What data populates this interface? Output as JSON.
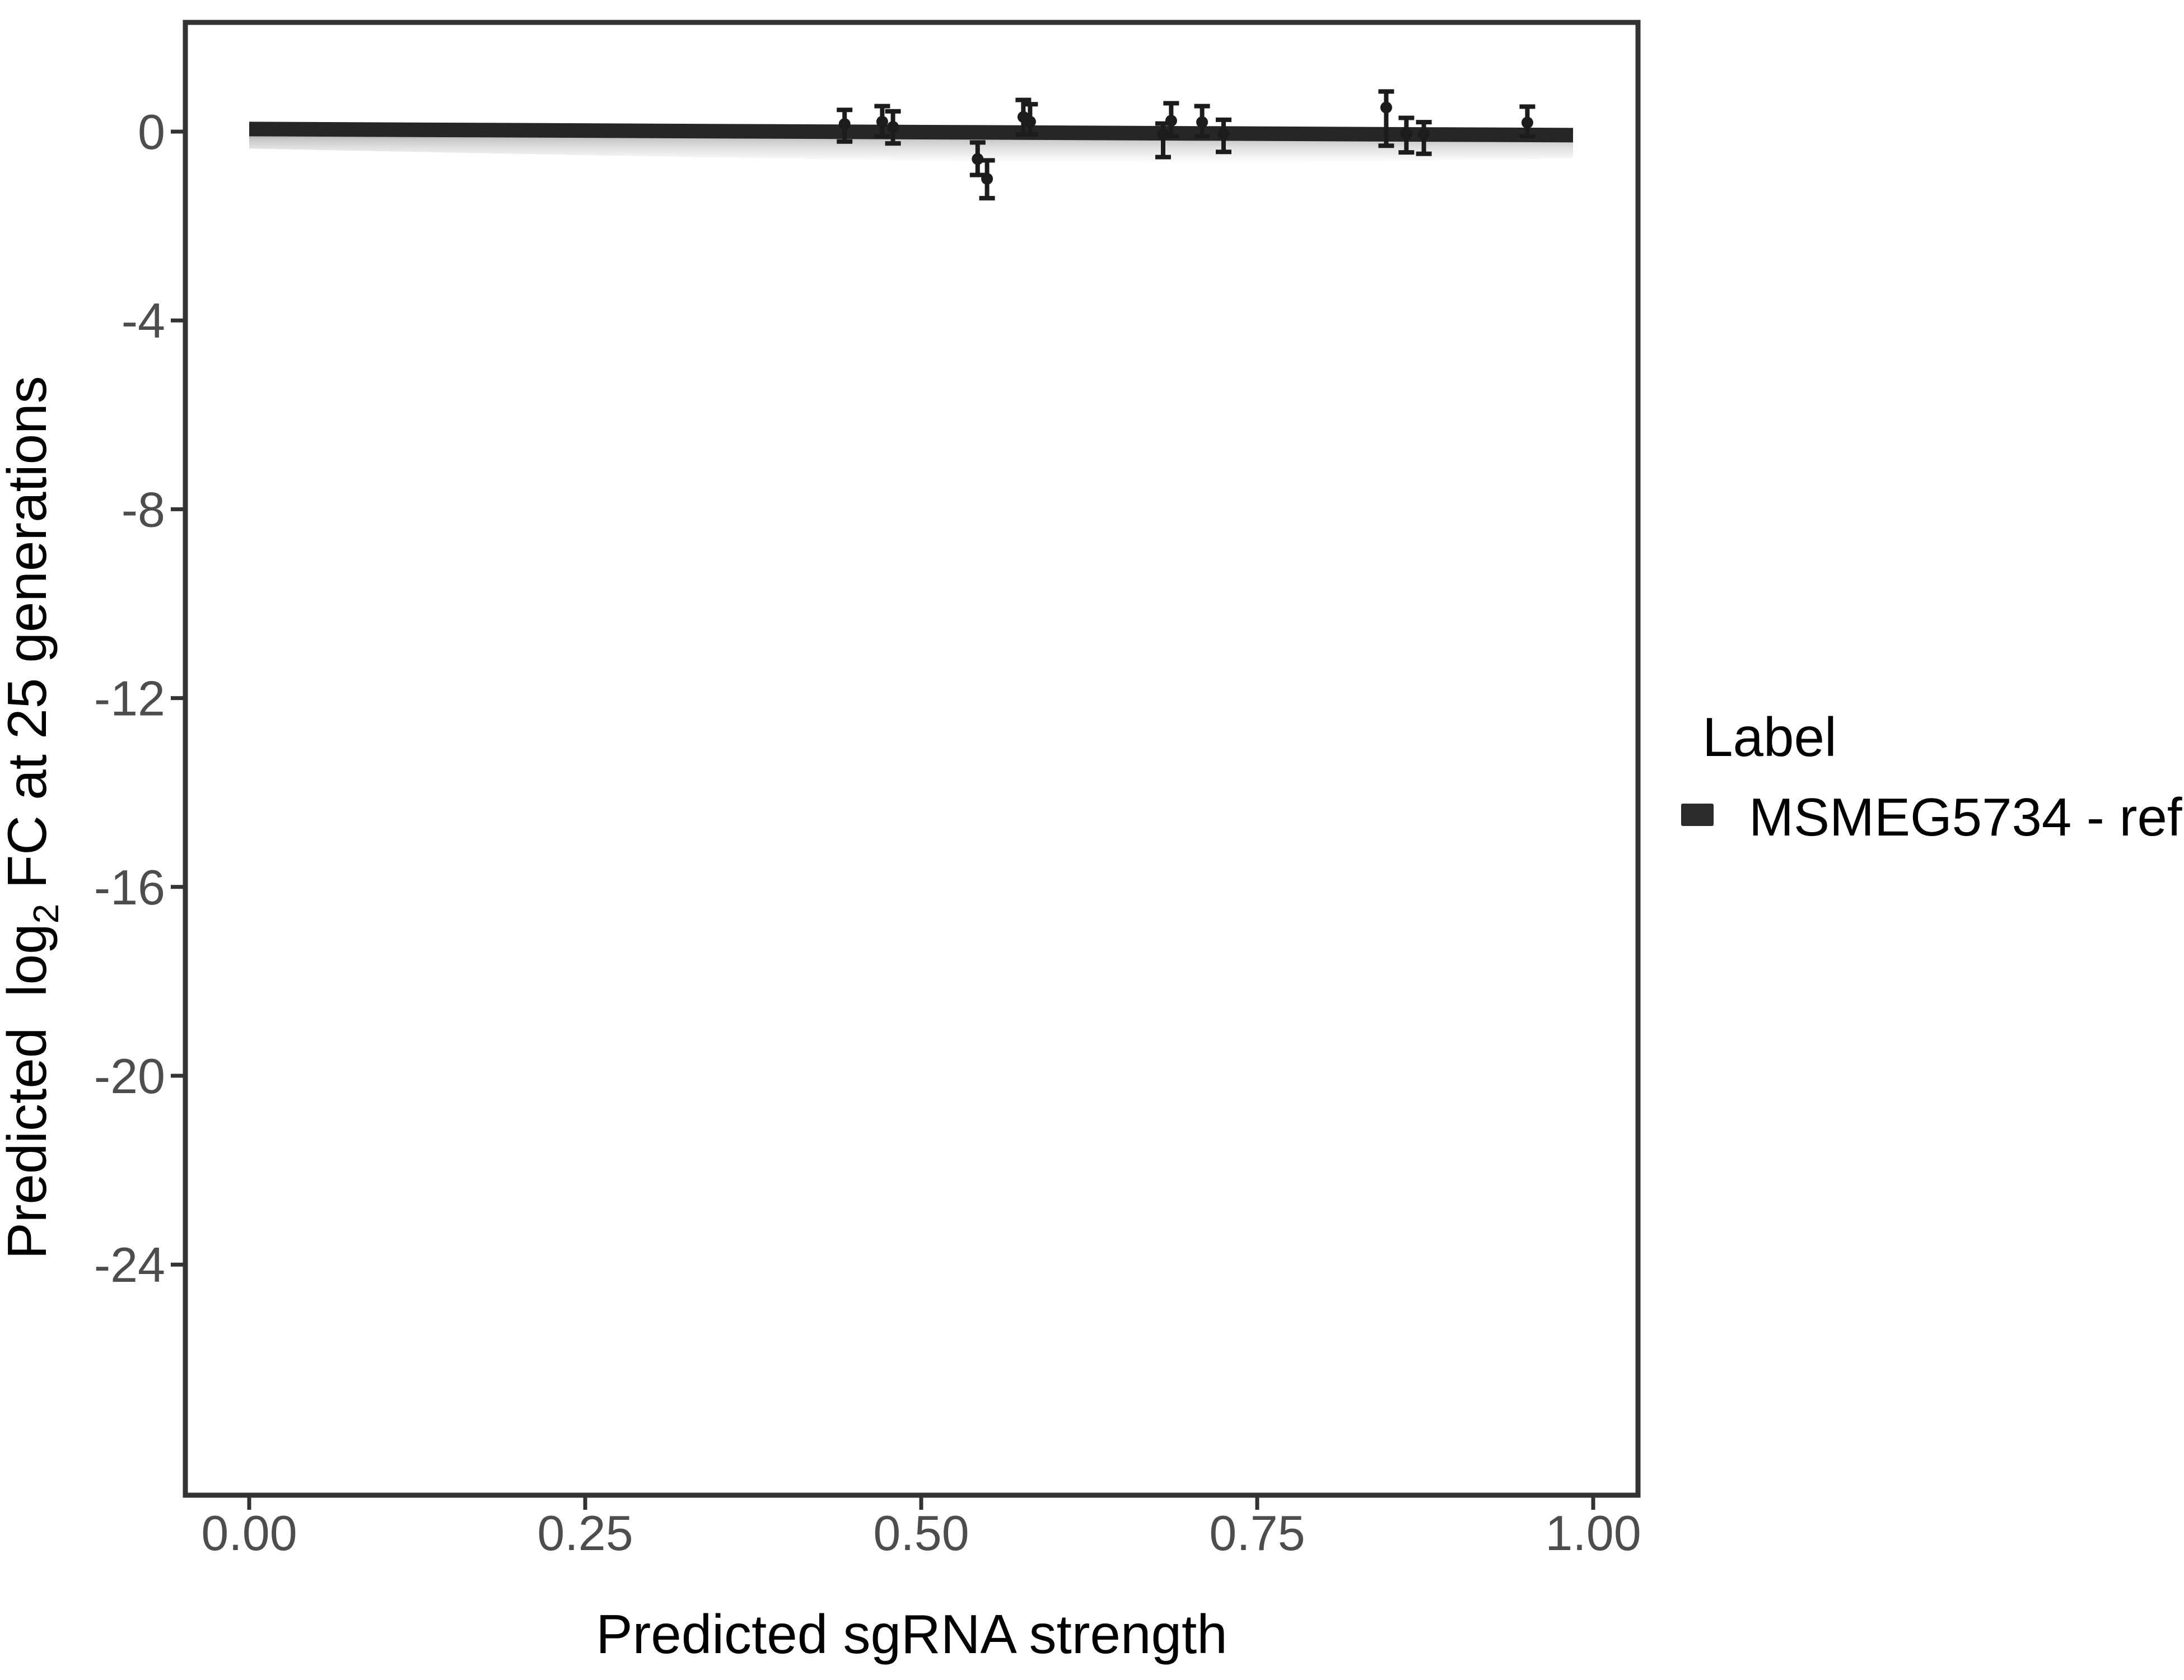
{
  "figure": {
    "background": "#ffffff",
    "panel": {
      "border_color": "#333333",
      "tick_color": "#333333",
      "tick_label_color": "#4d4d4d"
    },
    "x_axis": {
      "title": "Predicted sgRNA strength",
      "tick_labels": [
        "0.00",
        "0.25",
        "0.50",
        "0.75",
        "1.00"
      ],
      "tick_values": [
        0,
        0.25,
        0.5,
        0.75,
        1.0
      ]
    },
    "y_axis": {
      "title_prefix": "Predicted  log",
      "title_sub": "2",
      "title_suffix": " FC at 25 generations",
      "tick_labels": [
        "0",
        "-4",
        "-8",
        "-12",
        "-16",
        "-20",
        "-24"
      ],
      "tick_values": [
        0,
        -4,
        -8,
        -12,
        -16,
        -20,
        -24
      ]
    },
    "legend": {
      "title": "Label",
      "entries": [
        {
          "label": "MSMEG5734 - ref",
          "swatch_color": "#2b2b2b"
        }
      ]
    }
  },
  "chart_data": {
    "type": "scatter",
    "title": "",
    "xlabel": "Predicted sgRNA strength",
    "ylabel": "Predicted log2 FC at 25 generations",
    "xlim": [
      -0.0475,
      1.035
    ],
    "ylim": [
      -28.9,
      2.3
    ],
    "grid": false,
    "legend_position": "right",
    "series": [
      {
        "name": "MSMEG5734 - ref",
        "color": "#1c1c1c",
        "points": [
          {
            "x": 0.443,
            "y": 0.16,
            "ylo": -0.21,
            "yhi": 0.46
          },
          {
            "x": 0.471,
            "y": 0.21,
            "ylo": -0.1,
            "yhi": 0.54
          },
          {
            "x": 0.479,
            "y": 0.1,
            "ylo": -0.25,
            "yhi": 0.43
          },
          {
            "x": 0.542,
            "y": -0.58,
            "ylo": -0.92,
            "yhi": -0.23
          },
          {
            "x": 0.549,
            "y": -1.0,
            "ylo": -1.41,
            "yhi": -0.61
          },
          {
            "x": 0.576,
            "y": 0.31,
            "ylo": -0.06,
            "yhi": 0.67
          },
          {
            "x": 0.581,
            "y": 0.21,
            "ylo": -0.06,
            "yhi": 0.58
          },
          {
            "x": 0.68,
            "y": -0.05,
            "ylo": -0.54,
            "yhi": 0.17
          },
          {
            "x": 0.686,
            "y": 0.23,
            "ylo": -0.1,
            "yhi": 0.6
          },
          {
            "x": 0.709,
            "y": 0.2,
            "ylo": -0.1,
            "yhi": 0.54
          },
          {
            "x": 0.725,
            "y": -0.04,
            "ylo": -0.43,
            "yhi": 0.25
          },
          {
            "x": 0.846,
            "y": 0.51,
            "ylo": -0.3,
            "yhi": 0.85
          },
          {
            "x": 0.861,
            "y": -0.04,
            "ylo": -0.44,
            "yhi": 0.29
          },
          {
            "x": 0.874,
            "y": -0.05,
            "ylo": -0.47,
            "yhi": 0.2
          },
          {
            "x": 0.951,
            "y": 0.19,
            "ylo": -0.1,
            "yhi": 0.53
          }
        ],
        "smooth_line": {
          "x": [
            0.0,
            0.985
          ],
          "y": [
            0.055,
            -0.075
          ]
        },
        "ribbon": [
          {
            "x": 0.0,
            "lo": -0.36,
            "hi": 0.16
          },
          {
            "x": 0.25,
            "lo": -0.5,
            "hi": 0.1
          },
          {
            "x": 0.5,
            "lo": -0.62,
            "hi": 0.05
          },
          {
            "x": 0.75,
            "lo": -0.66,
            "hi": 0.02
          },
          {
            "x": 0.985,
            "lo": -0.57,
            "hi": 0.05
          }
        ]
      }
    ]
  }
}
